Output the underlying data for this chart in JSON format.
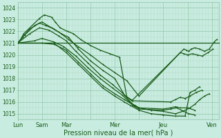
{
  "bg_color": "#c8ece0",
  "grid_color_major": "#90c4a8",
  "grid_color_minor": "#b0d8c0",
  "line_color": "#1a5c1a",
  "xlabel": "Pression niveau de la mer( hPa )",
  "xlabel_fontsize": 7.0,
  "ylim": [
    1014.5,
    1024.5
  ],
  "yticks": [
    1015,
    1016,
    1017,
    1018,
    1019,
    1020,
    1021,
    1022,
    1023,
    1024
  ],
  "xlim": [
    0,
    8.3
  ],
  "day_positions": [
    0,
    1,
    2,
    4,
    6,
    8
  ],
  "day_labels": [
    "Lun",
    "Sam",
    "Mar",
    "Mer",
    "Jeu",
    "Ven"
  ],
  "series": [
    {
      "x": [
        0,
        8.3
      ],
      "y": [
        1021.0,
        1021.0
      ],
      "lw": 0.9
    },
    {
      "x": [
        0,
        0.12,
        0.25,
        0.9,
        1.1,
        1.4,
        1.55,
        1.75,
        2.05,
        2.3,
        2.6,
        3.0,
        3.4,
        3.8,
        4.2,
        4.5,
        4.65,
        4.7,
        6.85,
        6.95,
        7.05,
        7.15,
        7.3,
        7.5,
        7.7,
        7.9,
        8.1,
        8.2
      ],
      "y": [
        1021.0,
        1021.3,
        1021.8,
        1023.1,
        1023.4,
        1023.2,
        1022.8,
        1022.3,
        1022.0,
        1021.8,
        1021.3,
        1020.8,
        1020.4,
        1020.1,
        1019.8,
        1016.4,
        1016.2,
        1016.1,
        1020.5,
        1020.4,
        1020.3,
        1020.5,
        1020.6,
        1020.5,
        1020.3,
        1020.5,
        1021.1,
        1021.3
      ],
      "lw": 0.9
    },
    {
      "x": [
        0,
        0.2,
        0.5,
        0.9,
        1.15,
        1.5,
        1.8,
        2.1,
        2.5,
        3.0,
        3.5,
        4.0,
        4.5,
        5.0,
        6.7,
        6.85,
        7.0,
        7.2,
        7.4,
        7.6,
        7.85,
        8.05
      ],
      "y": [
        1021.0,
        1021.5,
        1022.2,
        1022.7,
        1022.5,
        1022.2,
        1021.8,
        1021.3,
        1020.7,
        1020.0,
        1019.2,
        1018.5,
        1017.8,
        1016.5,
        1020.2,
        1020.1,
        1020.0,
        1020.1,
        1020.0,
        1019.9,
        1020.2,
        1020.5
      ],
      "lw": 0.9
    },
    {
      "x": [
        0,
        0.3,
        0.7,
        1.0,
        1.4,
        1.8,
        2.1,
        2.5,
        3.0,
        3.5,
        4.0,
        4.4,
        4.6,
        4.75,
        6.3,
        6.5,
        6.7,
        6.9,
        7.1,
        7.35,
        7.6
      ],
      "y": [
        1021.0,
        1021.7,
        1022.5,
        1022.8,
        1022.3,
        1021.8,
        1021.5,
        1020.5,
        1019.5,
        1018.7,
        1018.0,
        1016.6,
        1016.3,
        1016.1,
        1016.0,
        1016.2,
        1016.4,
        1016.3,
        1016.5,
        1016.8,
        1017.0
      ],
      "lw": 0.9
    },
    {
      "x": [
        0,
        0.5,
        0.9,
        1.3,
        1.7,
        2.0,
        2.4,
        2.9,
        3.4,
        3.9,
        4.3,
        4.6,
        4.75,
        4.85,
        5.0,
        6.0,
        6.3,
        6.5,
        6.7,
        7.0,
        7.3
      ],
      "y": [
        1021.0,
        1021.8,
        1022.3,
        1022.1,
        1021.6,
        1021.2,
        1020.3,
        1019.3,
        1018.3,
        1017.5,
        1016.8,
        1016.1,
        1015.8,
        1015.7,
        1015.5,
        1015.4,
        1015.5,
        1015.6,
        1015.5,
        1015.5,
        1015.3
      ],
      "lw": 0.9
    },
    {
      "x": [
        0,
        0.7,
        1.0,
        1.5,
        1.9,
        2.4,
        2.9,
        3.4,
        3.9,
        4.3,
        4.6,
        4.75,
        5.0,
        6.0,
        6.3,
        6.55,
        6.75,
        7.05,
        7.3
      ],
      "y": [
        1021.0,
        1021.2,
        1021.4,
        1021.1,
        1020.7,
        1019.9,
        1018.9,
        1018.0,
        1017.2,
        1016.6,
        1016.0,
        1015.7,
        1015.4,
        1015.3,
        1015.4,
        1015.5,
        1015.3,
        1015.0,
        1014.9
      ],
      "lw": 0.9
    },
    {
      "x": [
        0,
        1.0,
        1.5,
        2.0,
        2.5,
        3.0,
        3.5,
        4.0,
        4.4,
        4.65,
        4.8,
        5.0,
        5.5,
        6.0,
        6.5,
        6.8,
        7.1,
        7.3,
        7.5,
        7.7,
        7.9
      ],
      "y": [
        1021.0,
        1021.0,
        1020.9,
        1020.4,
        1019.4,
        1018.4,
        1017.4,
        1016.7,
        1016.2,
        1015.9,
        1015.7,
        1015.5,
        1015.3,
        1015.2,
        1015.0,
        1015.2,
        1015.5,
        1015.8,
        1016.2,
        1016.5,
        1016.7
      ],
      "lw": 0.9
    },
    {
      "x": [
        0,
        1.0,
        1.5,
        2.0,
        2.5,
        3.0,
        3.5,
        4.0,
        4.4,
        4.65,
        5.0,
        5.5,
        6.0,
        6.5,
        6.9,
        7.1,
        7.3,
        7.5
      ],
      "y": [
        1021.0,
        1021.0,
        1021.0,
        1020.2,
        1019.2,
        1018.2,
        1017.2,
        1016.5,
        1016.0,
        1015.7,
        1015.3,
        1015.0,
        1014.9,
        1014.8,
        1014.8,
        1016.8,
        1017.0,
        1017.3
      ],
      "lw": 0.9
    }
  ]
}
